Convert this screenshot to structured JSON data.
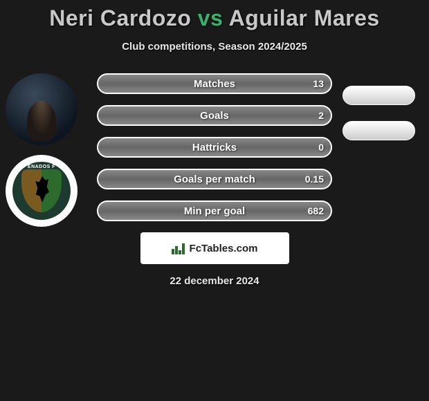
{
  "title": {
    "player1": "Neri Cardozo",
    "vs": "vs",
    "player2": "Aguilar Mares",
    "accent_color": "#36b36b"
  },
  "subtitle": "Club competitions, Season 2024/2025",
  "stats": [
    {
      "label": "Matches",
      "value_left": "13"
    },
    {
      "label": "Goals",
      "value_left": "2"
    },
    {
      "label": "Hattricks",
      "value_left": "0"
    },
    {
      "label": "Goals per match",
      "value_left": "0.15"
    },
    {
      "label": "Min per goal",
      "value_left": "682"
    }
  ],
  "right_pills_count": 2,
  "club_ribbon": "ENADOS F",
  "brand": "FcTables.com",
  "date": "22 december 2024",
  "colors": {
    "background": "#1a1a1a",
    "bar_gradient_top": "#888888",
    "bar_gradient_bottom": "#666666",
    "bar_border": "#ffffff",
    "pill_bg": "#e6e6e6",
    "title_text": "#c8c8c8",
    "text": "#ffffff"
  }
}
